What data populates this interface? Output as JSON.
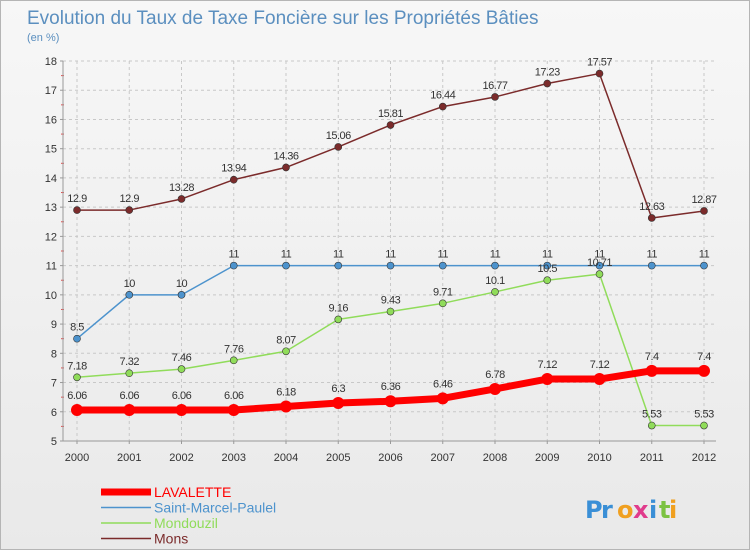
{
  "chart_data": {
    "type": "line",
    "title": "Evolution du Taux de Taxe Foncière sur les Propriétés Bâties",
    "subtitle": "(en %)",
    "x": [
      "2000",
      "2001",
      "2002",
      "2003",
      "2004",
      "2005",
      "2006",
      "2007",
      "2008",
      "2009",
      "2010",
      "2011",
      "2012"
    ],
    "ylim": [
      5,
      18
    ],
    "yticks": [
      "5",
      "6",
      "7",
      "8",
      "9",
      "10",
      "11",
      "12",
      "13",
      "14",
      "15",
      "16",
      "17",
      "18"
    ],
    "grid": true,
    "legend_position": "bottom-left",
    "series": [
      {
        "name": "LAVALETTE",
        "color": "#ff0000",
        "values": [
          6.06,
          6.06,
          6.06,
          6.06,
          6.18,
          6.3,
          6.36,
          6.46,
          6.78,
          7.12,
          7.12,
          7.4,
          7.4
        ],
        "labels": [
          "6.06",
          "6.06",
          "6.06",
          "6.06",
          "6.18",
          "6.3",
          "6.36",
          "6.46",
          "6.78",
          "7.12",
          "7.12",
          "7.4",
          "7.4"
        ]
      },
      {
        "name": "Saint-Marcel-Paulel",
        "color": "#4d93cd",
        "values": [
          8.5,
          10,
          10,
          11,
          11,
          11,
          11,
          11,
          11,
          11,
          11,
          11,
          11
        ],
        "labels": [
          "8.5",
          "10",
          "10",
          "11",
          "11",
          "11",
          "11",
          "11",
          "11",
          "11",
          "11",
          "11",
          "11"
        ]
      },
      {
        "name": "Mondouzil",
        "color": "#90dc5a",
        "values": [
          7.18,
          7.32,
          7.46,
          7.76,
          8.07,
          9.16,
          9.43,
          9.71,
          10.1,
          10.5,
          10.71,
          5.53,
          5.53
        ],
        "labels": [
          "7.18",
          "7.32",
          "7.46",
          "7.76",
          "8.07",
          "9.16",
          "9.43",
          "9.71",
          "10.1",
          "10.5",
          "10.71",
          "5.53",
          "5.53"
        ]
      },
      {
        "name": "Mons",
        "color": "#7b2b2b",
        "values": [
          12.9,
          12.9,
          13.28,
          13.94,
          14.36,
          15.06,
          15.81,
          16.44,
          16.77,
          17.23,
          17.57,
          12.63,
          12.87
        ],
        "labels": [
          "12.9",
          "12.9",
          "13.28",
          "13.94",
          "14.36",
          "15.06",
          "15.81",
          "16.44",
          "16.77",
          "17.23",
          "17.57",
          "12.63",
          "12.87"
        ]
      }
    ],
    "legend": [
      {
        "name": "LAVALETTE",
        "color": "#ff0000"
      },
      {
        "name": "Saint-Marcel-Paulel",
        "color": "#4d93cd"
      },
      {
        "name": "Mondouzil",
        "color": "#90dc5a"
      },
      {
        "name": "Mons",
        "color": "#7b2b2b"
      }
    ]
  },
  "logo": {
    "letters": [
      "P",
      "r",
      "o",
      "x",
      "i",
      "t",
      "i"
    ],
    "colors": [
      "#3a8fd6",
      "#3a8fd6",
      "#f0a020",
      "#e03c8c",
      "#3a8fd6",
      "#7cc242",
      "#f0a020"
    ]
  }
}
